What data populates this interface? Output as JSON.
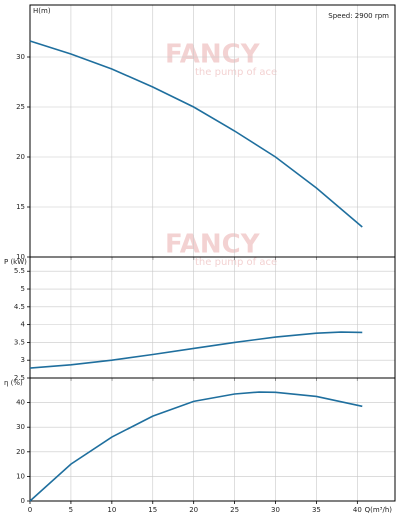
{
  "watermark": "FANCY",
  "watermark_sub": "the pump of ace",
  "chart_data": [
    {
      "type": "line",
      "annotation": "Speed: 2900 rpm",
      "ylabel": "H(m)",
      "x": [
        0,
        5,
        10,
        15,
        20,
        25,
        30,
        35,
        40.6
      ],
      "series": [
        {
          "name": "H",
          "color": "#1f6f9e",
          "values": [
            31.6,
            30.3,
            28.8,
            27.0,
            25.0,
            22.6,
            20.0,
            16.9,
            13.0
          ]
        }
      ],
      "xlim": [
        0,
        44.6
      ],
      "xticks": [
        0,
        5,
        10,
        15,
        20,
        25,
        30,
        35,
        40
      ],
      "ylim": [
        10,
        35.2
      ],
      "yticks": [
        10,
        15,
        20,
        25,
        30
      ],
      "grid": true
    },
    {
      "type": "line",
      "ylabel": "P (kW)",
      "x": [
        0,
        5,
        10,
        15,
        20,
        25,
        30,
        35,
        38,
        40.6
      ],
      "series": [
        {
          "name": "P",
          "color": "#1f6f9e",
          "values": [
            2.78,
            2.87,
            3.0,
            3.16,
            3.33,
            3.5,
            3.65,
            3.76,
            3.79,
            3.78
          ]
        }
      ],
      "xlim": [
        0,
        44.6
      ],
      "xticks": [
        0,
        5,
        10,
        15,
        20,
        25,
        30,
        35,
        40
      ],
      "ylim": [
        2.5,
        5.9
      ],
      "yticks": [
        2.5,
        3,
        3.5,
        4,
        4.5,
        5,
        5.5
      ],
      "grid": true
    },
    {
      "type": "line",
      "ylabel": "η (%)",
      "xlabel": "Q(m³/h)",
      "x": [
        0,
        5,
        10,
        15,
        20,
        25,
        28,
        30,
        35,
        40.6
      ],
      "series": [
        {
          "name": "η",
          "color": "#1f6f9e",
          "values": [
            0,
            15,
            26,
            34.5,
            40.5,
            43.5,
            44.3,
            44.2,
            42.5,
            38.5
          ]
        }
      ],
      "xlim": [
        0,
        44.6
      ],
      "xticks": [
        0,
        5,
        10,
        15,
        20,
        25,
        30,
        35,
        40
      ],
      "ylim": [
        0,
        50
      ],
      "yticks": [
        0,
        10,
        20,
        30,
        40
      ],
      "grid": true
    }
  ]
}
